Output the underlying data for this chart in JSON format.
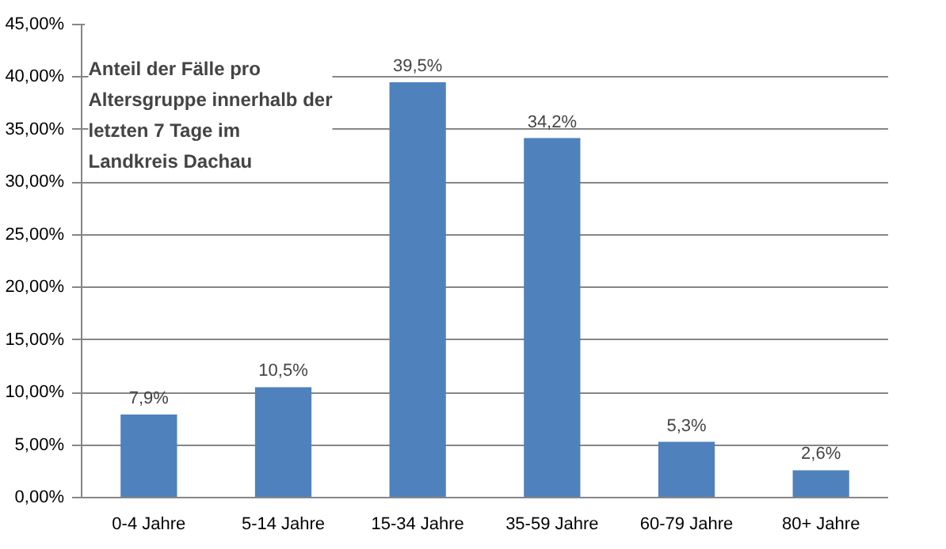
{
  "chart_data": {
    "type": "bar",
    "title": "Anteil der Fälle pro Altersgruppe innerhalb der letzten 7 Tage im Landkreis Dachau",
    "categories": [
      "0-4 Jahre",
      "5-14 Jahre",
      "15-34 Jahre",
      "35-59 Jahre",
      "60-79 Jahre",
      "80+ Jahre"
    ],
    "values": [
      7.9,
      10.5,
      39.5,
      34.2,
      5.3,
      2.6
    ],
    "value_labels": [
      "7,9%",
      "10,5%",
      "39,5%",
      "34,2%",
      "5,3%",
      "2,6%"
    ],
    "color": "#4f81bd",
    "ylim": [
      0,
      45
    ],
    "yticks": [
      {
        "value": 0,
        "label": "0,00%"
      },
      {
        "value": 5,
        "label": "5,00%"
      },
      {
        "value": 10,
        "label": "10,00%"
      },
      {
        "value": 15,
        "label": "15,00%"
      },
      {
        "value": 20,
        "label": "20,00%"
      },
      {
        "value": 25,
        "label": "25,00%"
      },
      {
        "value": 30,
        "label": "30,00%"
      },
      {
        "value": 35,
        "label": "35,00%"
      },
      {
        "value": 40,
        "label": "40,00%"
      },
      {
        "value": 45,
        "label": "45,00%"
      }
    ],
    "grid": "y"
  }
}
